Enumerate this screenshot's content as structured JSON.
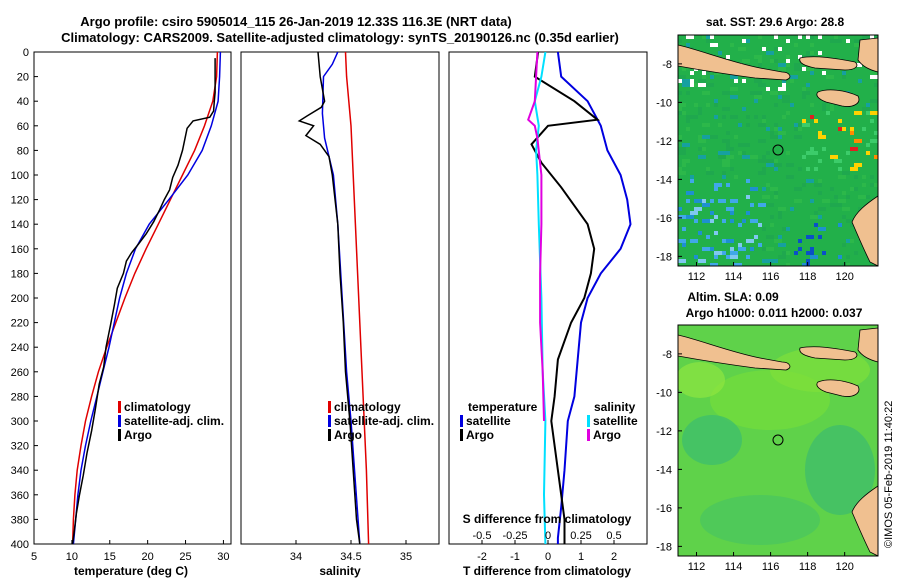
{
  "header": {
    "title_line1": "Argo profile: csiro 5905014_115 26-Jan-2019 12.33S 116.3E (NRT data)",
    "title_line2": "Climatology: CARS2009. Satellite-adjusted climatology: synTS_20190126.nc (0.35d earlier)"
  },
  "colors": {
    "climatology": "#e00000",
    "satellite": "#0000e0",
    "argo": "#000000",
    "sat_salinity": "#00e0ff",
    "argo_salinity": "#e000e0",
    "land": "#f0c090"
  },
  "chart_data": [
    {
      "id": "temperature",
      "type": "line",
      "xlabel": "temperature (deg C)",
      "ylabel": "",
      "xlim": [
        5,
        31
      ],
      "ylim": [
        400,
        0
      ],
      "xticks": [
        "5",
        "10",
        "15",
        "20",
        "25",
        "30"
      ],
      "xtick_values": [
        5,
        10,
        15,
        20,
        25,
        30
      ],
      "yticks": [
        "0",
        "20",
        "40",
        "60",
        "80",
        "100",
        "120",
        "140",
        "160",
        "180",
        "200",
        "220",
        "240",
        "260",
        "280",
        "300",
        "320",
        "340",
        "360",
        "380",
        "400"
      ],
      "legend": [
        "climatology",
        "satellite-adj. clim.",
        "Argo"
      ],
      "series": [
        {
          "name": "climatology",
          "color": "#e00000",
          "x": [
            29.2,
            29.1,
            28.6,
            27.5,
            26.2,
            24.6,
            23.0,
            21.4,
            19.8,
            18.3,
            17.0,
            15.8,
            14.6,
            13.5,
            12.6,
            11.8,
            11.2,
            10.7,
            10.4,
            10.2,
            10.1
          ],
          "y": [
            0,
            20,
            40,
            60,
            80,
            100,
            120,
            140,
            160,
            180,
            200,
            220,
            240,
            260,
            280,
            300,
            320,
            340,
            360,
            380,
            400
          ]
        },
        {
          "name": "satellite-adj. clim.",
          "color": "#0000e0",
          "x": [
            29.6,
            29.5,
            29.3,
            28.4,
            27.2,
            25.3,
            22.8,
            20.2,
            18.4,
            17.2,
            16.3,
            15.6,
            14.9,
            14.1,
            13.3,
            12.5,
            11.8,
            11.2,
            10.8,
            10.5,
            10.2
          ],
          "y": [
            0,
            20,
            40,
            60,
            80,
            100,
            120,
            140,
            160,
            180,
            200,
            220,
            240,
            260,
            280,
            300,
            320,
            340,
            360,
            380,
            400
          ]
        },
        {
          "name": "Argo",
          "color": "#000000",
          "x": [
            28.9,
            28.9,
            28.9,
            28.8,
            28.7,
            28.2,
            26.0,
            25.2,
            24.6,
            24.0,
            23.3,
            22.9,
            22.2,
            21.6,
            20.8,
            19.8,
            18.8,
            17.9,
            17.2,
            16.8,
            16.0,
            15.6,
            15.1,
            14.5,
            14.2,
            13.6,
            13.1,
            12.6,
            12.0,
            11.5,
            11.0,
            10.6,
            10.3,
            10.1
          ],
          "y": [
            5,
            20,
            33,
            40,
            48,
            53,
            56,
            62,
            80,
            92,
            102,
            112,
            120,
            128,
            138,
            148,
            156,
            163,
            170,
            180,
            192,
            206,
            222,
            240,
            256,
            270,
            290,
            308,
            326,
            344,
            360,
            375,
            390,
            400
          ]
        }
      ]
    },
    {
      "id": "salinity",
      "type": "line",
      "xlabel": "salinity",
      "xlim": [
        33.5,
        35.3
      ],
      "ylim": [
        400,
        0
      ],
      "xticks": [
        "34",
        "34.5",
        "35"
      ],
      "xtick_values": [
        34,
        34.5,
        35
      ],
      "legend": [
        "climatology",
        "satellite-adj. clim.",
        "Argo"
      ],
      "series": [
        {
          "name": "climatology",
          "color": "#e00000",
          "x": [
            34.45,
            34.46,
            34.48,
            34.5,
            34.52,
            34.54,
            34.56,
            34.58,
            34.6,
            34.62,
            34.64,
            34.66
          ],
          "y": [
            0,
            20,
            40,
            60,
            100,
            140,
            180,
            220,
            260,
            300,
            340,
            400
          ]
        },
        {
          "name": "satellite-adj. clim.",
          "color": "#0000e0",
          "x": [
            34.38,
            34.33,
            34.25,
            34.24,
            34.26,
            34.3,
            34.34,
            34.38,
            34.42,
            34.46,
            34.5,
            34.54,
            34.58
          ],
          "y": [
            0,
            10,
            20,
            50,
            70,
            85,
            100,
            140,
            200,
            260,
            300,
            350,
            400
          ]
        },
        {
          "name": "Argo",
          "color": "#000000",
          "x": [
            34.2,
            34.22,
            34.26,
            34.23,
            34.1,
            34.03,
            34.16,
            34.09,
            34.22,
            34.3,
            34.33,
            34.38,
            34.4,
            34.43,
            34.45,
            34.49,
            34.52,
            34.55,
            34.58
          ],
          "y": [
            0,
            20,
            40,
            45,
            52,
            56,
            60,
            68,
            75,
            85,
            100,
            140,
            180,
            220,
            260,
            300,
            340,
            380,
            400
          ]
        }
      ]
    },
    {
      "id": "difference",
      "type": "line",
      "xlabel": "T difference from climatology",
      "secondary_xlabel": "S difference from climatology",
      "xlim": [
        -3,
        3
      ],
      "ylim": [
        400,
        0
      ],
      "xticks": [
        "-2",
        "-1",
        "0",
        "1",
        "2"
      ],
      "xtick_values": [
        -2,
        -1,
        0,
        1,
        2
      ],
      "secondary_xticks": [
        "-0.5",
        "-0.25",
        "0",
        "0.25",
        "0.5"
      ],
      "legend_temperature_title": "temperature",
      "legend_salinity_title": "salinity",
      "legend_temperature": [
        "satellite",
        "Argo"
      ],
      "legend_salinity": [
        "satellite",
        "Argo"
      ],
      "series": [
        {
          "name": "T satellite",
          "color": "#0000e0",
          "x": [
            0.3,
            0.4,
            1.2,
            1.6,
            1.8,
            2.2,
            2.4,
            2.5,
            2.2,
            1.6,
            1.2,
            1.0,
            0.9,
            0.8,
            0.6,
            0.5,
            0.4,
            0.3,
            0.3
          ],
          "y": [
            0,
            20,
            40,
            60,
            80,
            100,
            120,
            140,
            160,
            180,
            200,
            220,
            250,
            280,
            300,
            340,
            370,
            395,
            400
          ]
        },
        {
          "name": "T Argo",
          "color": "#000000",
          "x": [
            -0.3,
            -0.4,
            0.8,
            1.5,
            0.0,
            -0.5,
            -0.2,
            0.4,
            1.2,
            1.4,
            1.3,
            1.1,
            0.7,
            0.3,
            0.2,
            0.1,
            0.3,
            0.5,
            0.5
          ],
          "y": [
            0,
            20,
            40,
            55,
            60,
            75,
            90,
            110,
            140,
            160,
            180,
            200,
            220,
            250,
            280,
            300,
            340,
            380,
            400
          ]
        },
        {
          "name": "S satellite",
          "color": "#00e0ff",
          "x": [
            -0.02,
            -0.05,
            -0.1,
            -0.07,
            -0.09,
            -0.08,
            -0.07,
            -0.05,
            -0.04,
            -0.02,
            -0.03,
            -0.02
          ],
          "y": [
            0,
            20,
            40,
            60,
            80,
            100,
            140,
            200,
            260,
            300,
            360,
            400
          ]
        },
        {
          "name": "S Argo",
          "color": "#e000e0",
          "x": [
            -0.08,
            -0.09,
            -0.1,
            -0.15,
            -0.1,
            -0.08,
            -0.05,
            -0.05,
            -0.06,
            -0.06,
            -0.04,
            -0.03
          ],
          "y": [
            0,
            20,
            40,
            55,
            60,
            70,
            100,
            140,
            180,
            220,
            260,
            300
          ]
        }
      ]
    },
    {
      "id": "sst_map",
      "type": "heatmap",
      "title": "sat. SST: 29.6 Argo: 28.8",
      "xticks": [
        "112",
        "114",
        "116",
        "118",
        "120"
      ],
      "xtick_values": [
        112,
        114,
        116,
        118,
        120
      ],
      "yticks": [
        "-8",
        "-10",
        "-12",
        "-14",
        "-16",
        "-18"
      ],
      "ytick_values": [
        -8,
        -10,
        -12,
        -14,
        -16,
        -18
      ],
      "xlim": [
        111,
        121.8
      ],
      "ylim": [
        -18.5,
        -6.5
      ],
      "argo_position": {
        "lon": 116.3,
        "lat": -12.33
      }
    },
    {
      "id": "sla_map",
      "type": "heatmap",
      "title_line1": "Altim. SLA: 0.09",
      "title_line2": "Argo h1000: 0.011 h2000: 0.037",
      "xticks": [
        "112",
        "114",
        "116",
        "118",
        "120"
      ],
      "xtick_values": [
        112,
        114,
        116,
        118,
        120
      ],
      "yticks": [
        "-8",
        "-10",
        "-12",
        "-14",
        "-16",
        "-18"
      ],
      "ytick_values": [
        -8,
        -10,
        -12,
        -14,
        -16,
        -18
      ],
      "xlim": [
        111,
        121.8
      ],
      "ylim": [
        -18.5,
        -6.5
      ],
      "argo_position": {
        "lon": 116.3,
        "lat": -12.33
      }
    }
  ],
  "watermark": "©IMOS 05-Feb-2019 11:40:22"
}
